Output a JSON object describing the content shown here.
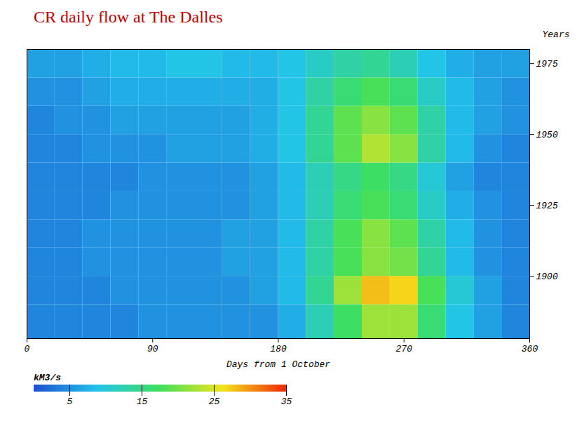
{
  "chart_data": {
    "type": "heatmap",
    "title": "CR daily flow at The Dalles",
    "x_label": "Days from 1 October",
    "y_label": "Years",
    "x": [
      0,
      20,
      40,
      60,
      80,
      100,
      120,
      140,
      160,
      180,
      200,
      220,
      240,
      260,
      280,
      300,
      320,
      340,
      360
    ],
    "y": [
      1878,
      1890,
      1900,
      1910,
      1920,
      1930,
      1940,
      1950,
      1960,
      1970,
      1980
    ],
    "values": [
      [
        4,
        4,
        4,
        4,
        5,
        5,
        5,
        5,
        5,
        7,
        12,
        17,
        22,
        22,
        16,
        9,
        6,
        4
      ],
      [
        4,
        4,
        4,
        5,
        5,
        5,
        5,
        5,
        6,
        8,
        14,
        22,
        28,
        27,
        18,
        10,
        6,
        4
      ],
      [
        4,
        4,
        5,
        5,
        5,
        5,
        5,
        6,
        6,
        8,
        13,
        18,
        21,
        20,
        14,
        8,
        5,
        4
      ],
      [
        4,
        4,
        5,
        5,
        5,
        5,
        5,
        6,
        6,
        8,
        13,
        18,
        21,
        19,
        13,
        8,
        5,
        4
      ],
      [
        4,
        4,
        4,
        5,
        5,
        5,
        5,
        5,
        6,
        8,
        12,
        16,
        18,
        16,
        11,
        7,
        5,
        4
      ],
      [
        4,
        4,
        4,
        4,
        5,
        5,
        5,
        5,
        6,
        8,
        12,
        15,
        17,
        15,
        10,
        6,
        4,
        4
      ],
      [
        4,
        4,
        5,
        5,
        5,
        6,
        6,
        6,
        7,
        9,
        14,
        19,
        23,
        21,
        13,
        8,
        5,
        4
      ],
      [
        4,
        5,
        5,
        6,
        6,
        6,
        6,
        6,
        7,
        9,
        14,
        19,
        21,
        19,
        13,
        8,
        6,
        5
      ],
      [
        5,
        5,
        6,
        7,
        7,
        7,
        7,
        7,
        7,
        9,
        13,
        16,
        18,
        16,
        11,
        8,
        6,
        5
      ],
      [
        6,
        6,
        7,
        8,
        8,
        9,
        9,
        8,
        8,
        9,
        11,
        13,
        14,
        12,
        9,
        7,
        6,
        6
      ]
    ],
    "xlim": [
      0,
      360
    ],
    "xticks": [
      0,
      90,
      180,
      270,
      360
    ],
    "ylim": [
      1878,
      1980
    ],
    "yticks": [
      1900,
      1925,
      1950,
      1975
    ],
    "color_label": "kM3/s",
    "color_lim": [
      0,
      35
    ],
    "color_ticks": [
      5,
      15,
      25,
      35
    ]
  }
}
